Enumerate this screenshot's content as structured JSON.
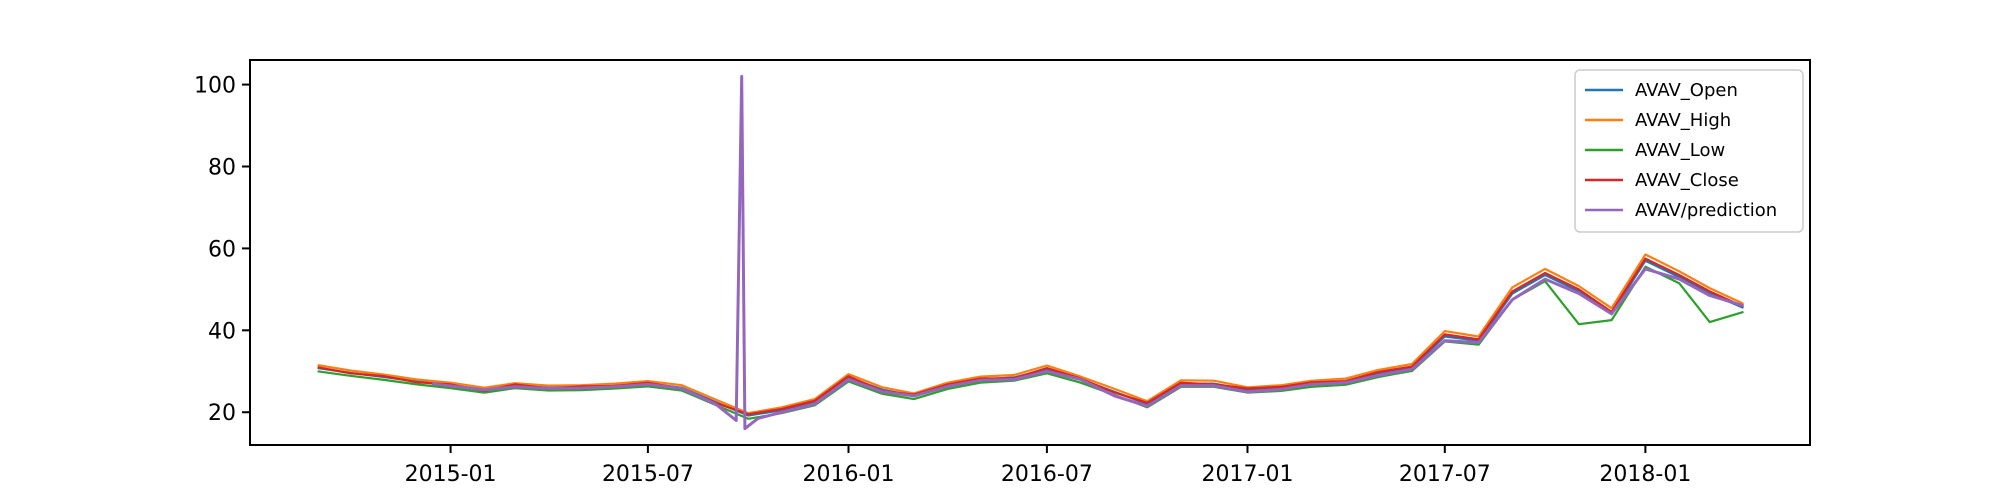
{
  "chart_data": {
    "type": "line",
    "title": "",
    "xlabel": "",
    "ylabel": "",
    "x_ticks": [
      "2015-01",
      "2015-07",
      "2016-01",
      "2016-07",
      "2017-01",
      "2017-07",
      "2018-01"
    ],
    "y_ticks": [
      20,
      40,
      60,
      80,
      100
    ],
    "xlim": [
      "2014-07-01",
      "2018-06-01"
    ],
    "ylim": [
      12,
      106
    ],
    "grid": false,
    "legend": "top-right",
    "series": [
      {
        "name": "AVAV_Open",
        "color": "#1f77b4",
        "points": [
          [
            "2014-09-01",
            30.8
          ],
          [
            "2014-10-01",
            29.6
          ],
          [
            "2014-11-01",
            28.6
          ],
          [
            "2014-12-01",
            27.5
          ],
          [
            "2015-01-01",
            26.6
          ],
          [
            "2015-02-01",
            25.5
          ],
          [
            "2015-03-01",
            26.6
          ],
          [
            "2015-04-01",
            26.0
          ],
          [
            "2015-05-01",
            26.1
          ],
          [
            "2015-06-01",
            26.5
          ],
          [
            "2015-07-01",
            27.0
          ],
          [
            "2015-08-01",
            26.0
          ],
          [
            "2015-09-01",
            22.5
          ],
          [
            "2015-10-01",
            19.2
          ],
          [
            "2015-11-01",
            20.5
          ],
          [
            "2015-12-01",
            22.5
          ],
          [
            "2016-01-01",
            28.5
          ],
          [
            "2016-02-01",
            25.5
          ],
          [
            "2016-03-01",
            24.0
          ],
          [
            "2016-04-01",
            26.5
          ],
          [
            "2016-05-01",
            28.0
          ],
          [
            "2016-06-01",
            28.5
          ],
          [
            "2016-07-01",
            30.5
          ],
          [
            "2016-08-01",
            28.0
          ],
          [
            "2016-09-01",
            25.0
          ],
          [
            "2016-10-01",
            22.0
          ],
          [
            "2016-11-01",
            27.0
          ],
          [
            "2016-12-01",
            27.0
          ],
          [
            "2017-01-01",
            25.5
          ],
          [
            "2017-02-01",
            26.0
          ],
          [
            "2017-03-01",
            27.0
          ],
          [
            "2017-04-01",
            27.5
          ],
          [
            "2017-05-01",
            29.5
          ],
          [
            "2017-06-01",
            31.0
          ],
          [
            "2017-07-01",
            38.5
          ],
          [
            "2017-08-01",
            37.5
          ],
          [
            "2017-09-01",
            49.0
          ],
          [
            "2017-10-01",
            53.5
          ],
          [
            "2017-11-01",
            49.5
          ],
          [
            "2017-12-01",
            44.0
          ],
          [
            "2018-01-01",
            57.0
          ],
          [
            "2018-02-01",
            53.0
          ],
          [
            "2018-03-01",
            49.0
          ],
          [
            "2018-04-01",
            45.5
          ]
        ]
      },
      {
        "name": "AVAV_High",
        "color": "#ff7f0e",
        "points": [
          [
            "2014-09-01",
            31.5
          ],
          [
            "2014-10-01",
            30.2
          ],
          [
            "2014-11-01",
            29.2
          ],
          [
            "2014-12-01",
            28.0
          ],
          [
            "2015-01-01",
            27.2
          ],
          [
            "2015-02-01",
            26.0
          ],
          [
            "2015-03-01",
            27.1
          ],
          [
            "2015-04-01",
            26.5
          ],
          [
            "2015-05-01",
            26.6
          ],
          [
            "2015-06-01",
            27.0
          ],
          [
            "2015-07-01",
            27.6
          ],
          [
            "2015-08-01",
            26.6
          ],
          [
            "2015-09-01",
            23.1
          ],
          [
            "2015-10-01",
            19.8
          ],
          [
            "2015-11-01",
            21.2
          ],
          [
            "2015-12-01",
            23.2
          ],
          [
            "2016-01-01",
            29.3
          ],
          [
            "2016-02-01",
            26.1
          ],
          [
            "2016-03-01",
            24.6
          ],
          [
            "2016-04-01",
            27.2
          ],
          [
            "2016-05-01",
            28.7
          ],
          [
            "2016-06-01",
            29.1
          ],
          [
            "2016-07-01",
            31.4
          ],
          [
            "2016-08-01",
            28.7
          ],
          [
            "2016-09-01",
            25.7
          ],
          [
            "2016-10-01",
            22.7
          ],
          [
            "2016-11-01",
            27.8
          ],
          [
            "2016-12-01",
            27.7
          ],
          [
            "2017-01-01",
            26.1
          ],
          [
            "2017-02-01",
            26.6
          ],
          [
            "2017-03-01",
            27.7
          ],
          [
            "2017-04-01",
            28.2
          ],
          [
            "2017-05-01",
            30.3
          ],
          [
            "2017-06-01",
            31.8
          ],
          [
            "2017-07-01",
            39.8
          ],
          [
            "2017-08-01",
            38.5
          ],
          [
            "2017-09-01",
            50.5
          ],
          [
            "2017-10-01",
            55.0
          ],
          [
            "2017-11-01",
            50.8
          ],
          [
            "2017-12-01",
            45.4
          ],
          [
            "2018-01-01",
            58.5
          ],
          [
            "2018-02-01",
            54.4
          ],
          [
            "2018-03-01",
            50.3
          ],
          [
            "2018-04-01",
            46.5
          ]
        ]
      },
      {
        "name": "AVAV_Low",
        "color": "#2ca02c",
        "points": [
          [
            "2014-09-01",
            30.0
          ],
          [
            "2014-10-01",
            28.9
          ],
          [
            "2014-11-01",
            27.9
          ],
          [
            "2014-12-01",
            26.8
          ],
          [
            "2015-01-01",
            25.9
          ],
          [
            "2015-02-01",
            24.8
          ],
          [
            "2015-03-01",
            25.9
          ],
          [
            "2015-04-01",
            25.3
          ],
          [
            "2015-05-01",
            25.4
          ],
          [
            "2015-06-01",
            25.8
          ],
          [
            "2015-07-01",
            26.3
          ],
          [
            "2015-08-01",
            25.3
          ],
          [
            "2015-09-01",
            21.8
          ],
          [
            "2015-10-01",
            18.4
          ],
          [
            "2015-11-01",
            19.8
          ],
          [
            "2015-12-01",
            21.7
          ],
          [
            "2016-01-01",
            27.5
          ],
          [
            "2016-02-01",
            24.5
          ],
          [
            "2016-03-01",
            23.2
          ],
          [
            "2016-04-01",
            25.7
          ],
          [
            "2016-05-01",
            27.2
          ],
          [
            "2016-06-01",
            27.7
          ],
          [
            "2016-07-01",
            29.5
          ],
          [
            "2016-08-01",
            27.2
          ],
          [
            "2016-09-01",
            24.2
          ],
          [
            "2016-10-01",
            21.2
          ],
          [
            "2016-11-01",
            26.2
          ],
          [
            "2016-12-01",
            26.2
          ],
          [
            "2017-01-01",
            24.8
          ],
          [
            "2017-02-01",
            25.2
          ],
          [
            "2017-03-01",
            26.2
          ],
          [
            "2017-04-01",
            26.7
          ],
          [
            "2017-05-01",
            28.6
          ],
          [
            "2017-06-01",
            30.1
          ],
          [
            "2017-07-01",
            37.3
          ],
          [
            "2017-08-01",
            36.5
          ],
          [
            "2017-09-01",
            47.5
          ],
          [
            "2017-10-01",
            52.0
          ],
          [
            "2017-11-01",
            41.5
          ],
          [
            "2017-12-01",
            42.5
          ],
          [
            "2018-01-01",
            55.5
          ],
          [
            "2018-02-01",
            51.5
          ],
          [
            "2018-03-01",
            42.0
          ],
          [
            "2018-04-01",
            44.5
          ]
        ]
      },
      {
        "name": "AVAV_Close",
        "color": "#d62728",
        "points": [
          [
            "2014-09-01",
            31.0
          ],
          [
            "2014-10-01",
            29.5
          ],
          [
            "2014-11-01",
            28.8
          ],
          [
            "2014-12-01",
            27.3
          ],
          [
            "2015-01-01",
            26.8
          ],
          [
            "2015-02-01",
            25.2
          ],
          [
            "2015-03-01",
            26.8
          ],
          [
            "2015-04-01",
            25.8
          ],
          [
            "2015-05-01",
            26.3
          ],
          [
            "2015-06-01",
            26.4
          ],
          [
            "2015-07-01",
            27.2
          ],
          [
            "2015-08-01",
            25.8
          ],
          [
            "2015-09-01",
            22.3
          ],
          [
            "2015-10-01",
            19.5
          ],
          [
            "2015-11-01",
            20.8
          ],
          [
            "2015-12-01",
            22.8
          ],
          [
            "2016-01-01",
            28.8
          ],
          [
            "2016-02-01",
            25.2
          ],
          [
            "2016-03-01",
            24.3
          ],
          [
            "2016-04-01",
            26.8
          ],
          [
            "2016-05-01",
            28.2
          ],
          [
            "2016-06-01",
            28.3
          ],
          [
            "2016-07-01",
            30.8
          ],
          [
            "2016-08-01",
            28.2
          ],
          [
            "2016-09-01",
            24.8
          ],
          [
            "2016-10-01",
            22.3
          ],
          [
            "2016-11-01",
            27.2
          ],
          [
            "2016-12-01",
            26.8
          ],
          [
            "2017-01-01",
            25.8
          ],
          [
            "2017-02-01",
            26.2
          ],
          [
            "2017-03-01",
            27.3
          ],
          [
            "2017-04-01",
            27.6
          ],
          [
            "2017-05-01",
            29.8
          ],
          [
            "2017-06-01",
            31.2
          ],
          [
            "2017-07-01",
            39.0
          ],
          [
            "2017-08-01",
            37.8
          ],
          [
            "2017-09-01",
            49.5
          ],
          [
            "2017-10-01",
            54.0
          ],
          [
            "2017-11-01",
            50.0
          ],
          [
            "2017-12-01",
            44.5
          ],
          [
            "2018-01-01",
            57.5
          ],
          [
            "2018-02-01",
            53.5
          ],
          [
            "2018-03-01",
            49.5
          ],
          [
            "2018-04-01",
            45.8
          ]
        ]
      },
      {
        "name": "AVAV/prediction",
        "color": "#9467bd",
        "points": [
          [
            "2014-12-15",
            27.0
          ],
          [
            "2015-01-01",
            26.4
          ],
          [
            "2015-02-01",
            25.5
          ],
          [
            "2015-03-01",
            26.2
          ],
          [
            "2015-04-01",
            25.8
          ],
          [
            "2015-05-01",
            25.9
          ],
          [
            "2015-06-01",
            26.2
          ],
          [
            "2015-07-01",
            26.8
          ],
          [
            "2015-08-01",
            25.8
          ],
          [
            "2015-09-01",
            22.0
          ],
          [
            "2015-09-20",
            18.0
          ],
          [
            "2015-09-25",
            102.0
          ],
          [
            "2015-09-28",
            16.0
          ],
          [
            "2015-10-10",
            18.5
          ],
          [
            "2015-11-01",
            20.0
          ],
          [
            "2015-12-01",
            22.0
          ],
          [
            "2016-01-01",
            28.0
          ],
          [
            "2016-02-01",
            25.0
          ],
          [
            "2016-03-01",
            24.0
          ],
          [
            "2016-04-01",
            26.3
          ],
          [
            "2016-05-01",
            27.8
          ],
          [
            "2016-06-01",
            28.0
          ],
          [
            "2016-07-01",
            30.0
          ],
          [
            "2016-08-01",
            28.0
          ],
          [
            "2016-09-01",
            24.0
          ],
          [
            "2016-10-01",
            21.5
          ],
          [
            "2016-11-01",
            26.5
          ],
          [
            "2016-12-01",
            26.5
          ],
          [
            "2017-01-01",
            25.0
          ],
          [
            "2017-02-01",
            25.6
          ],
          [
            "2017-03-01",
            26.8
          ],
          [
            "2017-04-01",
            27.2
          ],
          [
            "2017-05-01",
            29.0
          ],
          [
            "2017-06-01",
            30.5
          ],
          [
            "2017-07-01",
            37.5
          ],
          [
            "2017-08-01",
            37.0
          ],
          [
            "2017-09-01",
            47.5
          ],
          [
            "2017-10-01",
            52.5
          ],
          [
            "2017-11-01",
            49.0
          ],
          [
            "2017-12-01",
            44.0
          ],
          [
            "2018-01-01",
            55.0
          ],
          [
            "2018-02-01",
            52.5
          ],
          [
            "2018-03-01",
            48.5
          ],
          [
            "2018-04-01",
            46.0
          ]
        ]
      }
    ]
  }
}
